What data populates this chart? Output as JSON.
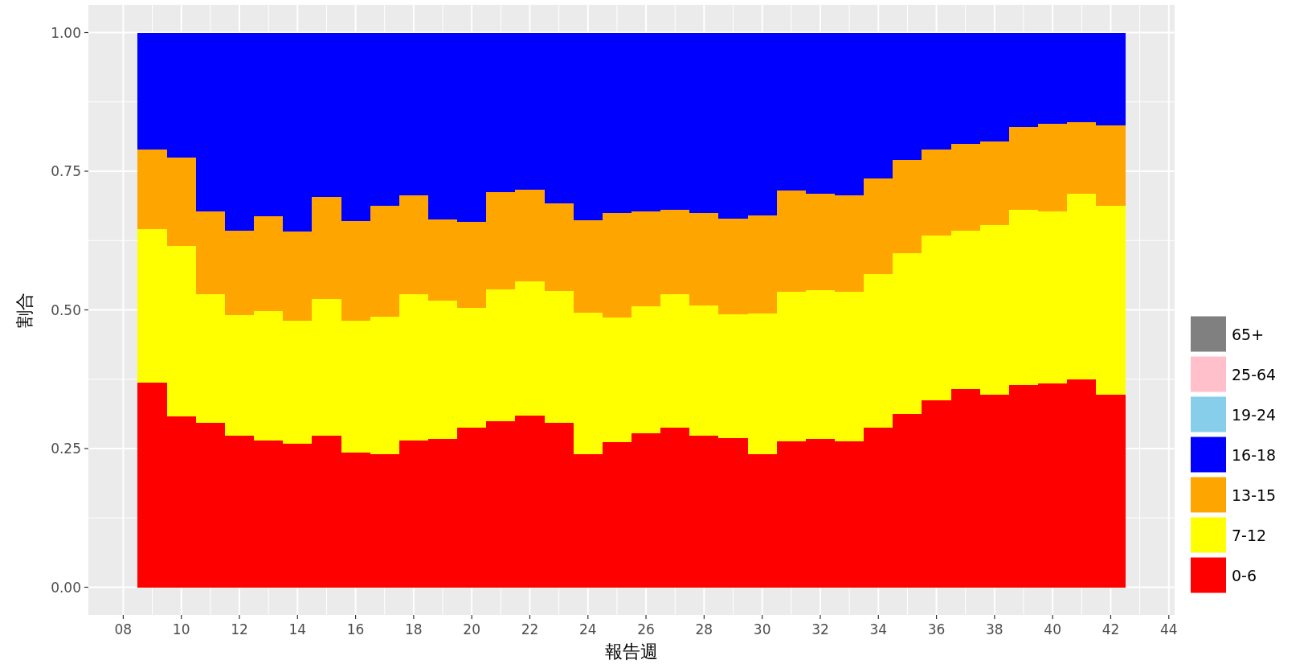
{
  "chart_data": {
    "type": "bar",
    "stacked": true,
    "xlabel": "報告週",
    "ylabel": "割合",
    "x": [
      9,
      10,
      11,
      12,
      13,
      14,
      15,
      16,
      17,
      18,
      19,
      20,
      21,
      22,
      23,
      24,
      25,
      26,
      27,
      28,
      29,
      30,
      31,
      32,
      33,
      34,
      35,
      36,
      37,
      38,
      39,
      40,
      41,
      42
    ],
    "xlim": [
      6.8,
      44.2
    ],
    "xticks": [
      {
        "value": 8,
        "label": "08"
      },
      10,
      12,
      14,
      16,
      18,
      20,
      22,
      24,
      26,
      28,
      30,
      32,
      34,
      36,
      38,
      40,
      42,
      44
    ],
    "ylim": [
      -0.05,
      1.05
    ],
    "yticks": [
      {
        "value": 0,
        "label": "0.00"
      },
      {
        "value": 0.25,
        "label": "0.25"
      },
      {
        "value": 0.5,
        "label": "0.50"
      },
      {
        "value": 0.75,
        "label": "0.75"
      },
      {
        "value": 1,
        "label": "1.00"
      }
    ],
    "grid": true,
    "legend": "right",
    "series": [
      {
        "name": "0-6",
        "color": "#ff0000",
        "values": [
          0.369,
          0.308,
          0.296,
          0.273,
          0.264,
          0.258,
          0.273,
          0.243,
          0.24,
          0.264,
          0.267,
          0.287,
          0.299,
          0.31,
          0.296,
          0.24,
          0.261,
          0.278,
          0.287,
          0.273,
          0.269,
          0.24,
          0.263,
          0.267,
          0.263,
          0.287,
          0.313,
          0.337,
          0.357,
          0.347,
          0.364,
          0.367,
          0.375,
          0.347
        ]
      },
      {
        "name": "7-12",
        "color": "#ffff00",
        "values": [
          0.277,
          0.307,
          0.232,
          0.217,
          0.234,
          0.223,
          0.247,
          0.238,
          0.247,
          0.264,
          0.249,
          0.217,
          0.238,
          0.242,
          0.238,
          0.255,
          0.225,
          0.229,
          0.241,
          0.235,
          0.223,
          0.253,
          0.27,
          0.269,
          0.27,
          0.278,
          0.289,
          0.297,
          0.286,
          0.306,
          0.317,
          0.311,
          0.335,
          0.34
        ]
      },
      {
        "name": "13-15",
        "color": "#ffa500",
        "values": [
          0.143,
          0.159,
          0.149,
          0.153,
          0.171,
          0.161,
          0.183,
          0.179,
          0.2,
          0.179,
          0.147,
          0.155,
          0.176,
          0.164,
          0.158,
          0.167,
          0.189,
          0.171,
          0.152,
          0.167,
          0.173,
          0.178,
          0.182,
          0.174,
          0.174,
          0.172,
          0.169,
          0.155,
          0.157,
          0.151,
          0.149,
          0.157,
          0.129,
          0.146
        ]
      },
      {
        "name": "16-18",
        "color": "#0000ff",
        "values": [
          0.211,
          0.226,
          0.323,
          0.357,
          0.331,
          0.358,
          0.297,
          0.34,
          0.313,
          0.293,
          0.337,
          0.341,
          0.287,
          0.284,
          0.308,
          0.338,
          0.325,
          0.322,
          0.32,
          0.325,
          0.335,
          0.329,
          0.285,
          0.29,
          0.293,
          0.263,
          0.229,
          0.211,
          0.2,
          0.196,
          0.17,
          0.165,
          0.161,
          0.167
        ]
      },
      {
        "name": "19-24",
        "color": "#87ceeb",
        "values": [
          0,
          0,
          0,
          0,
          0,
          0,
          0,
          0,
          0,
          0,
          0,
          0,
          0,
          0,
          0,
          0,
          0,
          0,
          0,
          0,
          0,
          0,
          0,
          0,
          0,
          0,
          0,
          0,
          0,
          0,
          0,
          0,
          0,
          0
        ]
      },
      {
        "name": "25-64",
        "color": "#ffc0cb",
        "values": [
          0,
          0,
          0,
          0,
          0,
          0,
          0,
          0,
          0,
          0,
          0,
          0,
          0,
          0,
          0,
          0,
          0,
          0,
          0,
          0,
          0,
          0,
          0,
          0,
          0,
          0,
          0,
          0,
          0,
          0,
          0,
          0,
          0,
          0
        ]
      },
      {
        "name": "65+",
        "color": "#808080",
        "values": [
          0,
          0,
          0,
          0,
          0,
          0,
          0,
          0,
          0,
          0,
          0,
          0,
          0,
          0,
          0,
          0,
          0,
          0,
          0,
          0,
          0,
          0,
          0,
          0,
          0,
          0,
          0,
          0,
          0,
          0,
          0,
          0,
          0,
          0
        ]
      }
    ]
  }
}
